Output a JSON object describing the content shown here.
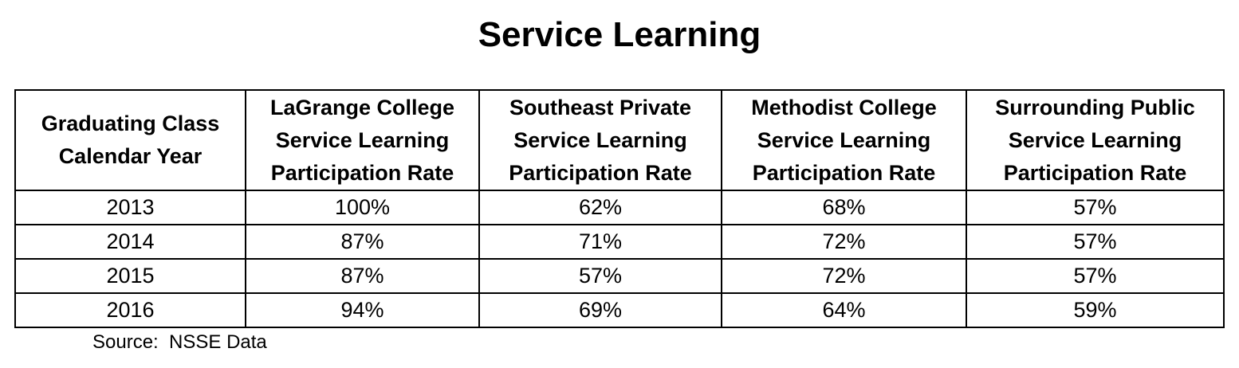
{
  "title": "Service Learning",
  "table": {
    "headers": [
      [
        "Graduating Class",
        "Calendar Year"
      ],
      [
        "LaGrange College",
        "Service Learning",
        "Participation Rate"
      ],
      [
        "Southeast Private",
        "Service Learning",
        "Participation Rate"
      ],
      [
        "Methodist College",
        "Service Learning",
        "Participation Rate"
      ],
      [
        "Surrounding Public",
        "Service Learning",
        "Participation Rate"
      ]
    ],
    "rows": [
      [
        "2013",
        "100%",
        "62%",
        "68%",
        "57%"
      ],
      [
        "2014",
        "87%",
        "71%",
        "72%",
        "57%"
      ],
      [
        "2015",
        "87%",
        "57%",
        "72%",
        "57%"
      ],
      [
        "2016",
        "94%",
        "69%",
        "64%",
        "59%"
      ]
    ]
  },
  "source": "Source:  NSSE Data"
}
